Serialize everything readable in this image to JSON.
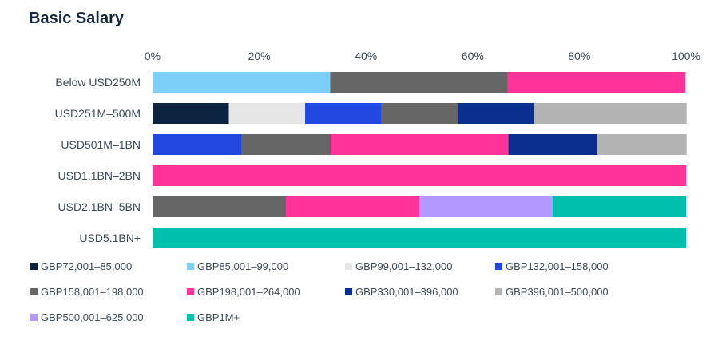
{
  "title": "Basic Salary",
  "chart_data": {
    "type": "bar",
    "orientation": "horizontal",
    "stacked": true,
    "xlim": [
      0,
      100
    ],
    "xticks": [
      "0%",
      "20%",
      "40%",
      "60%",
      "80%",
      "100%"
    ],
    "categories": [
      "Below USD250M",
      "USD251M–500M",
      "USD501M–1BN",
      "USD1.1BN–2BN",
      "USD2.1BN–5BN",
      "USD5.1BN+"
    ],
    "series": [
      {
        "name": "GBP72,001–85,000",
        "color": "#0d2440",
        "values": [
          0,
          14.3,
          0,
          0,
          0,
          0
        ]
      },
      {
        "name": "GBP85,001–99,000",
        "color": "#7ccff9",
        "values": [
          33.3,
          0,
          0,
          0,
          0,
          0
        ]
      },
      {
        "name": "GBP99,001–132,000",
        "color": "#e6e6e6",
        "values": [
          0,
          14.3,
          0,
          0,
          0,
          0
        ]
      },
      {
        "name": "GBP132,001–158,000",
        "color": "#2148e0",
        "values": [
          0,
          14.3,
          16.7,
          0,
          0,
          0
        ]
      },
      {
        "name": "GBP158,001–198,000",
        "color": "#666666",
        "values": [
          33.3,
          14.3,
          16.7,
          0,
          25,
          0
        ]
      },
      {
        "name": "GBP198,001–264,000",
        "color": "#ff3399",
        "values": [
          33.3,
          0,
          33.3,
          100,
          25,
          0
        ]
      },
      {
        "name": "GBP330,001–396,000",
        "color": "#0a2f8f",
        "values": [
          0,
          14.3,
          16.7,
          0,
          0,
          0
        ]
      },
      {
        "name": "GBP396,001–500,000",
        "color": "#b3b3b3",
        "values": [
          0,
          28.6,
          16.7,
          0,
          0,
          0
        ]
      },
      {
        "name": "GBP500,001–625,000",
        "color": "#b399ff",
        "values": [
          0,
          0,
          0,
          0,
          25,
          0
        ]
      },
      {
        "name": "GBP1M+",
        "color": "#00bfad",
        "values": [
          0,
          0,
          0,
          0,
          25,
          100
        ]
      }
    ],
    "legend_position": "bottom",
    "grid": false
  }
}
